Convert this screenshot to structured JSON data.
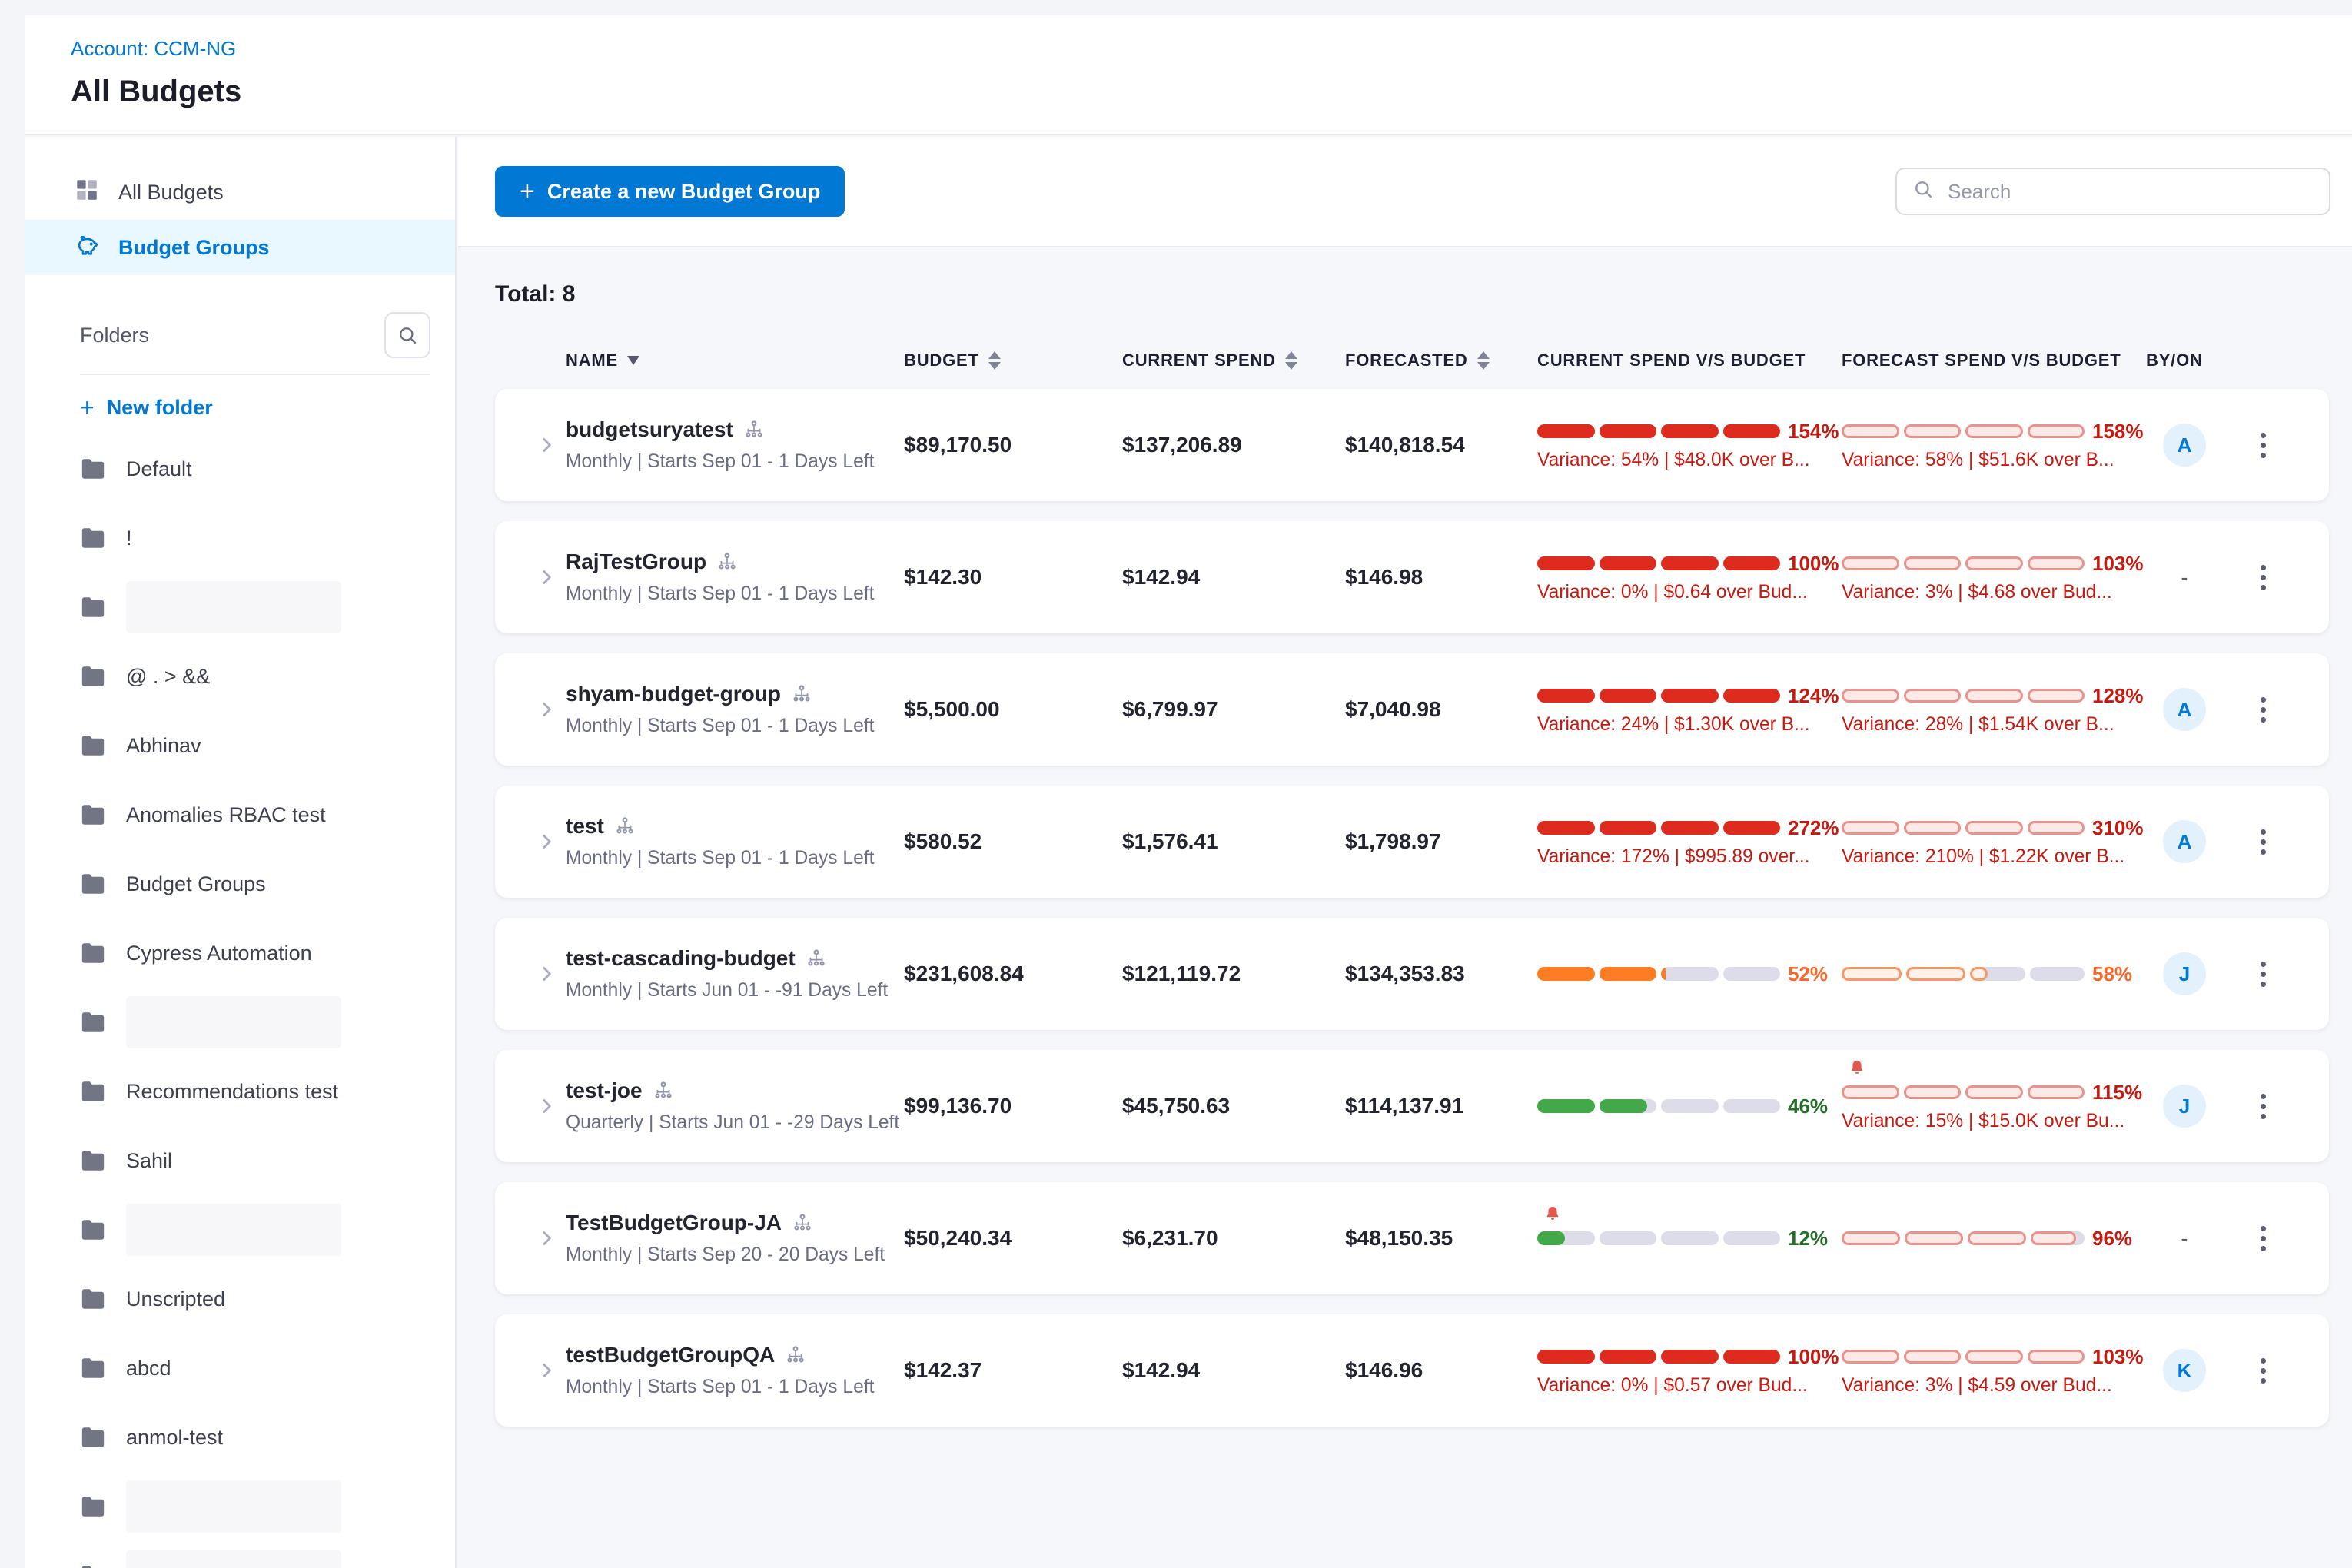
{
  "page": {
    "account_label": "Account: CCM-NG",
    "title": "All Budgets"
  },
  "sidebar": {
    "nav": [
      {
        "label": "All Budgets",
        "icon": "grid-icon",
        "active": false
      },
      {
        "label": "Budget Groups",
        "icon": "piggy-bank-icon",
        "active": true
      }
    ],
    "folders_header": "Folders",
    "new_folder_label": "New folder",
    "folders": [
      {
        "label": "Default"
      },
      {
        "label": "!"
      },
      {
        "redacted": true
      },
      {
        "label": "@ . > &&"
      },
      {
        "label": "Abhinav"
      },
      {
        "label": "Anomalies RBAC test"
      },
      {
        "label": "Budget Groups"
      },
      {
        "label": "Cypress Automation"
      },
      {
        "redacted": true
      },
      {
        "label": "Recommendations test"
      },
      {
        "label": "Sahil"
      },
      {
        "redacted": true
      },
      {
        "label": "Unscripted"
      },
      {
        "label": "abcd"
      },
      {
        "label": "anmol-test"
      },
      {
        "redacted": true
      },
      {
        "redacted": true
      }
    ]
  },
  "toolbar": {
    "create_icon": "+",
    "create_label": "Create a new Budget Group",
    "search_placeholder": "Search"
  },
  "table": {
    "total_label": "Total: 8",
    "columns": [
      {
        "label": "NAME",
        "sort": "desc"
      },
      {
        "label": "BUDGET",
        "sort": "updown"
      },
      {
        "label": "CURRENT SPEND",
        "sort": "updown"
      },
      {
        "label": "FORECASTED",
        "sort": "updown"
      },
      {
        "label": "CURRENT SPEND V/S BUDGET",
        "sort": "none"
      },
      {
        "label": "FORECAST SPEND V/S BUDGET",
        "sort": "none"
      },
      {
        "label": "BY/ON",
        "sort": "none"
      }
    ],
    "rows": [
      {
        "name": "budgetsuryatest",
        "period": "Monthly | Starts Sep 01 - 1 Days Left",
        "budget": "$89,170.50",
        "current_spend": "$137,206.89",
        "forecasted": "$140,818.54",
        "current_bar": {
          "pct": "154%",
          "color": "red",
          "style": "solid",
          "fill": 100,
          "bell": false,
          "variance": "Variance: 54% | $48.0K over B..."
        },
        "forecast_bar": {
          "pct": "158%",
          "color": "red",
          "style": "outline",
          "fill": 100,
          "bell": false,
          "variance": "Variance: 58% | $51.6K over B..."
        },
        "by": "A"
      },
      {
        "name": "RajTestGroup",
        "period": "Monthly | Starts Sep 01 - 1 Days Left",
        "budget": "$142.30",
        "current_spend": "$142.94",
        "forecasted": "$146.98",
        "current_bar": {
          "pct": "100%",
          "color": "red",
          "style": "solid",
          "fill": 100,
          "bell": false,
          "variance": "Variance: 0% | $0.64 over Bud..."
        },
        "forecast_bar": {
          "pct": "103%",
          "color": "red",
          "style": "outline",
          "fill": 100,
          "bell": false,
          "variance": "Variance: 3% | $4.68 over Bud..."
        },
        "by": "-"
      },
      {
        "name": "shyam-budget-group",
        "period": "Monthly | Starts Sep 01 - 1 Days Left",
        "budget": "$5,500.00",
        "current_spend": "$6,799.97",
        "forecasted": "$7,040.98",
        "current_bar": {
          "pct": "124%",
          "color": "red",
          "style": "solid",
          "fill": 100,
          "bell": false,
          "variance": "Variance: 24% | $1.30K over B..."
        },
        "forecast_bar": {
          "pct": "128%",
          "color": "red",
          "style": "outline",
          "fill": 100,
          "bell": false,
          "variance": "Variance: 28% | $1.54K over B..."
        },
        "by": "A"
      },
      {
        "name": "test",
        "period": "Monthly | Starts Sep 01 - 1 Days Left",
        "budget": "$580.52",
        "current_spend": "$1,576.41",
        "forecasted": "$1,798.97",
        "current_bar": {
          "pct": "272%",
          "color": "red",
          "style": "solid",
          "fill": 100,
          "bell": false,
          "variance": "Variance: 172% | $995.89 over..."
        },
        "forecast_bar": {
          "pct": "310%",
          "color": "red",
          "style": "outline",
          "fill": 100,
          "bell": false,
          "variance": "Variance: 210% | $1.22K over B..."
        },
        "by": "A"
      },
      {
        "name": "test-cascading-budget",
        "period": "Monthly | Starts Jun 01 - -91 Days Left",
        "budget": "$231,608.84",
        "current_spend": "$121,119.72",
        "forecasted": "$134,353.83",
        "current_bar": {
          "pct": "52%",
          "color": "orange",
          "style": "solid",
          "fill": 52,
          "bell": false,
          "variance": ""
        },
        "forecast_bar": {
          "pct": "58%",
          "color": "orange",
          "style": "outline",
          "fill": 58,
          "bell": false,
          "variance": ""
        },
        "by": "J"
      },
      {
        "name": "test-joe",
        "period": "Quarterly | Starts Jun 01 - -29 Days Left",
        "budget": "$99,136.70",
        "current_spend": "$45,750.63",
        "forecasted": "$114,137.91",
        "current_bar": {
          "pct": "46%",
          "color": "green",
          "style": "solid",
          "fill": 46,
          "bell": false,
          "variance": ""
        },
        "forecast_bar": {
          "pct": "115%",
          "color": "red",
          "style": "outline",
          "fill": 100,
          "bell": true,
          "variance": "Variance: 15% | $15.0K over Bu..."
        },
        "by": "J"
      },
      {
        "name": "TestBudgetGroup-JA",
        "period": "Monthly | Starts Sep 20 - 20 Days Left",
        "budget": "$50,240.34",
        "current_spend": "$6,231.70",
        "forecasted": "$48,150.35",
        "current_bar": {
          "pct": "12%",
          "color": "green",
          "style": "solid",
          "fill": 12,
          "bell": true,
          "variance": ""
        },
        "forecast_bar": {
          "pct": "96%",
          "color": "red",
          "style": "outline",
          "fill": 96,
          "bell": false,
          "variance": ""
        },
        "by": "-"
      },
      {
        "name": "testBudgetGroupQA",
        "period": "Monthly | Starts Sep 01 - 1 Days Left",
        "budget": "$142.37",
        "current_spend": "$142.94",
        "forecasted": "$146.96",
        "current_bar": {
          "pct": "100%",
          "color": "red",
          "style": "solid",
          "fill": 100,
          "bell": false,
          "variance": "Variance: 0% | $0.57 over Bud..."
        },
        "forecast_bar": {
          "pct": "103%",
          "color": "red",
          "style": "outline",
          "fill": 100,
          "bell": false,
          "variance": "Variance: 3% | $4.59 over Bud..."
        },
        "by": "K"
      }
    ]
  },
  "colors": {
    "accent_blue": "#0278d5",
    "bar_red": "#dd2b1e",
    "bar_orange": "#ff7d22",
    "bar_green": "#43a849",
    "variance_red": "#c6190f",
    "bar_track_gray": "#dcdde8"
  }
}
